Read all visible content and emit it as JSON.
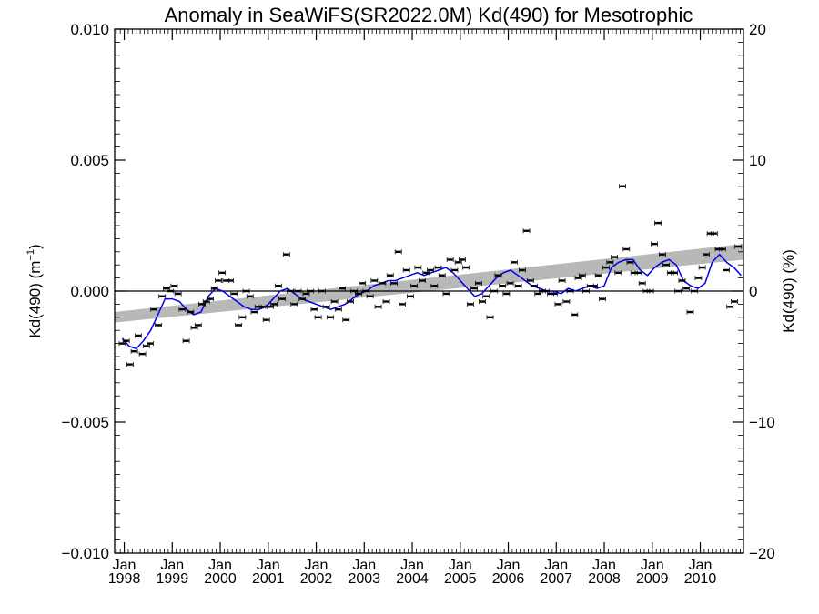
{
  "chart_data": {
    "type": "scatter",
    "title": "Anomaly in SeaWiFS(SR2022.0M) Kd(490) for Mesotrophic",
    "ylabel_left": "Kd(490) (m",
    "ylabel_left_sup": "−1",
    "ylabel_left_close": ")",
    "ylabel_right": "Kd(490) (%)",
    "xlim": [
      1997.8,
      2010.9
    ],
    "ylim": [
      -0.01,
      0.01
    ],
    "ylim_right": [
      -20,
      20
    ],
    "y_ticks": [
      {
        "v": 0.01,
        "label": "0.010"
      },
      {
        "v": 0.005,
        "label": "0.005"
      },
      {
        "v": 0.0,
        "label": "0.000"
      },
      {
        "v": -0.005,
        "label": "−0.005"
      },
      {
        "v": -0.01,
        "label": "−0.010"
      }
    ],
    "y_ticks_right": [
      {
        "v": 20,
        "label": "20"
      },
      {
        "v": 10,
        "label": "10"
      },
      {
        "v": 0,
        "label": "0"
      },
      {
        "v": -10,
        "label": "−10"
      },
      {
        "v": -20,
        "label": "−20"
      }
    ],
    "x_ticks": [
      {
        "year": 1998,
        "month": "Jan",
        "label": "1998"
      },
      {
        "year": 1999,
        "month": "Jan",
        "label": "1999"
      },
      {
        "year": 2000,
        "month": "Jan",
        "label": "2000"
      },
      {
        "year": 2001,
        "month": "Jan",
        "label": "2001"
      },
      {
        "year": 2002,
        "month": "Jan",
        "label": "2002"
      },
      {
        "year": 2003,
        "month": "Jan",
        "label": "2003"
      },
      {
        "year": 2004,
        "month": "Jan",
        "label": "2004"
      },
      {
        "year": 2005,
        "month": "Jan",
        "label": "2005"
      },
      {
        "year": 2006,
        "month": "Jan",
        "label": "2006"
      },
      {
        "year": 2007,
        "month": "Jan",
        "label": "2007"
      },
      {
        "year": 2008,
        "month": "Jan",
        "label": "2008"
      },
      {
        "year": 2009,
        "month": "Jan",
        "label": "2009"
      },
      {
        "year": 2010,
        "month": "Jan",
        "label": "2010"
      }
    ],
    "trend_band": {
      "x": [
        1997.8,
        2010.9
      ],
      "upper": [
        -0.0008,
        0.0018
      ],
      "lower": [
        -0.0012,
        0.0012
      ],
      "color": "#b8b8b8"
    },
    "colors": {
      "points": "#000000",
      "smooth": "#0000ee",
      "zero_line": "#000000"
    },
    "points": [
      {
        "x": 1997.96,
        "y": -0.002
      },
      {
        "x": 1998.04,
        "y": -0.0019
      },
      {
        "x": 1998.12,
        "y": -0.0028
      },
      {
        "x": 1998.21,
        "y": -0.0023
      },
      {
        "x": 1998.29,
        "y": -0.0017
      },
      {
        "x": 1998.38,
        "y": -0.0024
      },
      {
        "x": 1998.46,
        "y": -0.0021
      },
      {
        "x": 1998.54,
        "y": -0.002
      },
      {
        "x": 1998.62,
        "y": -0.0007
      },
      {
        "x": 1998.71,
        "y": -0.0013
      },
      {
        "x": 1998.79,
        "y": -0.0002
      },
      {
        "x": 1998.88,
        "y": 0.0001
      },
      {
        "x": 1998.96,
        "y": 0.0
      },
      {
        "x": 1999.04,
        "y": 0.0002
      },
      {
        "x": 1999.12,
        "y": -0.0001
      },
      {
        "x": 1999.21,
        "y": -0.0007
      },
      {
        "x": 1999.29,
        "y": -0.0019
      },
      {
        "x": 1999.38,
        "y": -0.0008
      },
      {
        "x": 1999.46,
        "y": -0.0014
      },
      {
        "x": 1999.54,
        "y": -0.0013
      },
      {
        "x": 1999.62,
        "y": -0.0005
      },
      {
        "x": 1999.71,
        "y": -0.0004
      },
      {
        "x": 1999.79,
        "y": -0.0003
      },
      {
        "x": 1999.88,
        "y": 0.0001
      },
      {
        "x": 1999.96,
        "y": 0.0004
      },
      {
        "x": 2000.04,
        "y": 0.0007
      },
      {
        "x": 2000.12,
        "y": 0.0004
      },
      {
        "x": 2000.21,
        "y": 0.0004
      },
      {
        "x": 2000.29,
        "y": -0.0001
      },
      {
        "x": 2000.38,
        "y": -0.0013
      },
      {
        "x": 2000.46,
        "y": -0.001
      },
      {
        "x": 2000.54,
        "y": 0.0
      },
      {
        "x": 2000.62,
        "y": -0.0002
      },
      {
        "x": 2000.71,
        "y": -0.0008
      },
      {
        "x": 2000.79,
        "y": -0.0006
      },
      {
        "x": 2000.88,
        "y": -0.0006
      },
      {
        "x": 2000.96,
        "y": -0.0011
      },
      {
        "x": 2001.04,
        "y": -0.0006
      },
      {
        "x": 2001.12,
        "y": -0.0005
      },
      {
        "x": 2001.21,
        "y": 0.0002
      },
      {
        "x": 2001.29,
        "y": -0.0003
      },
      {
        "x": 2001.38,
        "y": 0.0014
      },
      {
        "x": 2001.46,
        "y": 0.0
      },
      {
        "x": 2001.54,
        "y": -0.0005
      },
      {
        "x": 2001.62,
        "y": 0.0
      },
      {
        "x": 2001.71,
        "y": -0.0003
      },
      {
        "x": 2001.79,
        "y": -0.0001
      },
      {
        "x": 2001.88,
        "y": 0.0
      },
      {
        "x": 2001.96,
        "y": -0.0007
      },
      {
        "x": 2002.04,
        "y": -0.001
      },
      {
        "x": 2002.12,
        "y": 0.0
      },
      {
        "x": 2002.21,
        "y": -0.0006
      },
      {
        "x": 2002.29,
        "y": -0.001
      },
      {
        "x": 2002.38,
        "y": -0.0004
      },
      {
        "x": 2002.46,
        "y": -0.0007
      },
      {
        "x": 2002.54,
        "y": 0.0001
      },
      {
        "x": 2002.62,
        "y": -0.0011
      },
      {
        "x": 2002.71,
        "y": -0.0004
      },
      {
        "x": 2002.79,
        "y": 0.0
      },
      {
        "x": 2002.88,
        "y": -0.0001
      },
      {
        "x": 2002.96,
        "y": 0.0003
      },
      {
        "x": 2003.04,
        "y": 0.0
      },
      {
        "x": 2003.12,
        "y": -0.0002
      },
      {
        "x": 2003.21,
        "y": 0.0004
      },
      {
        "x": 2003.29,
        "y": -0.0006
      },
      {
        "x": 2003.38,
        "y": 0.0003
      },
      {
        "x": 2003.46,
        "y": -0.0004
      },
      {
        "x": 2003.54,
        "y": 0.0006
      },
      {
        "x": 2003.62,
        "y": 0.0003
      },
      {
        "x": 2003.71,
        "y": 0.0015
      },
      {
        "x": 2003.79,
        "y": -0.0005
      },
      {
        "x": 2003.88,
        "y": 0.0008
      },
      {
        "x": 2003.96,
        "y": -0.0002
      },
      {
        "x": 2004.04,
        "y": 0.0002
      },
      {
        "x": 2004.12,
        "y": 0.0009
      },
      {
        "x": 2004.21,
        "y": 0.0004
      },
      {
        "x": 2004.29,
        "y": 0.0007
      },
      {
        "x": 2004.38,
        "y": 0.0008
      },
      {
        "x": 2004.46,
        "y": 0.0002
      },
      {
        "x": 2004.54,
        "y": 0.0009
      },
      {
        "x": 2004.62,
        "y": 0.0006
      },
      {
        "x": 2004.71,
        "y": -0.0001
      },
      {
        "x": 2004.79,
        "y": 0.0012
      },
      {
        "x": 2004.88,
        "y": 0.0008
      },
      {
        "x": 2004.96,
        "y": 0.0011
      },
      {
        "x": 2005.04,
        "y": 0.0012
      },
      {
        "x": 2005.12,
        "y": 0.0009
      },
      {
        "x": 2005.21,
        "y": -0.0005
      },
      {
        "x": 2005.29,
        "y": 0.0001
      },
      {
        "x": 2005.38,
        "y": 0.0003
      },
      {
        "x": 2005.46,
        "y": -0.0004
      },
      {
        "x": 2005.54,
        "y": -0.0002
      },
      {
        "x": 2005.62,
        "y": -0.001
      },
      {
        "x": 2005.71,
        "y": 0.0
      },
      {
        "x": 2005.79,
        "y": 0.0006
      },
      {
        "x": 2005.88,
        "y": 0.0002
      },
      {
        "x": 2005.96,
        "y": -0.0001
      },
      {
        "x": 2006.04,
        "y": 0.0003
      },
      {
        "x": 2006.12,
        "y": 0.0011
      },
      {
        "x": 2006.21,
        "y": 0.0002
      },
      {
        "x": 2006.29,
        "y": 0.0008
      },
      {
        "x": 2006.38,
        "y": 0.0023
      },
      {
        "x": 2006.46,
        "y": 0.0004
      },
      {
        "x": 2006.54,
        "y": 0.0002
      },
      {
        "x": 2006.62,
        "y": -0.0001
      },
      {
        "x": 2006.71,
        "y": 0.0
      },
      {
        "x": 2006.79,
        "y": 0.0
      },
      {
        "x": 2006.88,
        "y": -0.0001
      },
      {
        "x": 2006.96,
        "y": -0.0001
      },
      {
        "x": 2007.04,
        "y": -0.0005
      },
      {
        "x": 2007.12,
        "y": 0.0004
      },
      {
        "x": 2007.21,
        "y": -0.0004
      },
      {
        "x": 2007.29,
        "y": 0.0
      },
      {
        "x": 2007.38,
        "y": -0.0009
      },
      {
        "x": 2007.46,
        "y": 0.0005
      },
      {
        "x": 2007.54,
        "y": 0.0006
      },
      {
        "x": 2007.62,
        "y": 0.0
      },
      {
        "x": 2007.71,
        "y": 0.0002
      },
      {
        "x": 2007.79,
        "y": 0.0002
      },
      {
        "x": 2007.88,
        "y": 0.0006
      },
      {
        "x": 2007.96,
        "y": -0.0003
      },
      {
        "x": 2008.04,
        "y": 0.0009
      },
      {
        "x": 2008.12,
        "y": 0.0011
      },
      {
        "x": 2008.21,
        "y": 0.0013
      },
      {
        "x": 2008.29,
        "y": 0.0007
      },
      {
        "x": 2008.38,
        "y": 0.004
      },
      {
        "x": 2008.46,
        "y": 0.0016
      },
      {
        "x": 2008.54,
        "y": 0.0011
      },
      {
        "x": 2008.62,
        "y": 0.0007
      },
      {
        "x": 2008.71,
        "y": 0.0007
      },
      {
        "x": 2008.79,
        "y": 0.0003
      },
      {
        "x": 2008.88,
        "y": 0.0
      },
      {
        "x": 2008.96,
        "y": 0.0
      },
      {
        "x": 2009.04,
        "y": 0.0018
      },
      {
        "x": 2009.12,
        "y": 0.0026
      },
      {
        "x": 2009.21,
        "y": 0.0014
      },
      {
        "x": 2009.29,
        "y": 0.001
      },
      {
        "x": 2009.38,
        "y": 0.0007
      },
      {
        "x": 2009.46,
        "y": 0.0007
      },
      {
        "x": 2009.54,
        "y": 0.0
      },
      {
        "x": 2009.62,
        "y": 0.0004
      },
      {
        "x": 2009.71,
        "y": 0.0001
      },
      {
        "x": 2009.79,
        "y": -0.0008
      },
      {
        "x": 2009.88,
        "y": 0.0
      },
      {
        "x": 2009.96,
        "y": 0.0005
      },
      {
        "x": 2010.04,
        "y": 0.0009
      },
      {
        "x": 2010.12,
        "y": 0.0014
      },
      {
        "x": 2010.21,
        "y": 0.0022
      },
      {
        "x": 2010.29,
        "y": 0.0022
      },
      {
        "x": 2010.38,
        "y": 0.0016
      },
      {
        "x": 2010.46,
        "y": 0.0016
      },
      {
        "x": 2010.54,
        "y": 0.0008
      },
      {
        "x": 2010.62,
        "y": -0.0006
      },
      {
        "x": 2010.71,
        "y": -0.0004
      },
      {
        "x": 2010.79,
        "y": 0.0017
      }
    ],
    "smooth": {
      "x": [
        1997.96,
        1998.1,
        1998.25,
        1998.4,
        1998.55,
        1998.7,
        1998.85,
        1999.0,
        1999.15,
        1999.3,
        1999.45,
        1999.6,
        1999.75,
        1999.9,
        2000.05,
        2000.2,
        2000.35,
        2000.5,
        2000.65,
        2000.8,
        2000.95,
        2001.1,
        2001.25,
        2001.4,
        2001.55,
        2001.7,
        2001.85,
        2002.0,
        2002.15,
        2002.3,
        2002.45,
        2002.6,
        2002.75,
        2002.9,
        2003.05,
        2003.2,
        2003.35,
        2003.5,
        2003.65,
        2003.8,
        2003.95,
        2004.1,
        2004.25,
        2004.4,
        2004.55,
        2004.7,
        2004.85,
        2005.0,
        2005.15,
        2005.3,
        2005.45,
        2005.6,
        2005.75,
        2005.9,
        2006.05,
        2006.2,
        2006.35,
        2006.5,
        2006.65,
        2006.8,
        2006.95,
        2007.1,
        2007.25,
        2007.4,
        2007.55,
        2007.7,
        2007.85,
        2008.0,
        2008.15,
        2008.3,
        2008.45,
        2008.6,
        2008.75,
        2008.9,
        2009.05,
        2009.2,
        2009.35,
        2009.5,
        2009.65,
        2009.8,
        2009.95,
        2010.1,
        2010.25,
        2010.4,
        2010.55,
        2010.7,
        2010.85
      ],
      "y": [
        -0.0018,
        -0.0021,
        -0.0022,
        -0.0019,
        -0.0015,
        -0.0009,
        -0.0003,
        -0.0003,
        -0.0004,
        -0.0007,
        -0.0009,
        -0.0008,
        -0.0002,
        0.0001,
        0.0,
        -0.0002,
        -0.0004,
        -0.0006,
        -0.0007,
        -0.0007,
        -0.0006,
        -0.0003,
        0.0,
        0.0001,
        -0.0001,
        -0.0003,
        -0.0004,
        -0.0005,
        -0.0006,
        -0.0007,
        -0.0006,
        -0.0005,
        -0.0003,
        -0.0001,
        0.0,
        0.0002,
        0.0003,
        0.0004,
        0.0004,
        0.0005,
        0.0006,
        0.0007,
        0.0006,
        0.0007,
        0.0008,
        0.0009,
        0.0007,
        0.0004,
        0.0001,
        -0.0002,
        -0.0001,
        0.0002,
        0.0005,
        0.0007,
        0.0008,
        0.0006,
        0.0004,
        0.0002,
        0.0001,
        0.0,
        0.0,
        -0.0001,
        0.0001,
        0.0,
        0.0001,
        0.0002,
        0.0001,
        0.0002,
        0.0009,
        0.0011,
        0.0012,
        0.0012,
        0.0008,
        0.0006,
        0.0009,
        0.0011,
        0.0012,
        0.001,
        0.0004,
        0.0002,
        0.0001,
        0.0003,
        0.0011,
        0.0014,
        0.0011,
        0.0009,
        0.0006
      ]
    }
  }
}
